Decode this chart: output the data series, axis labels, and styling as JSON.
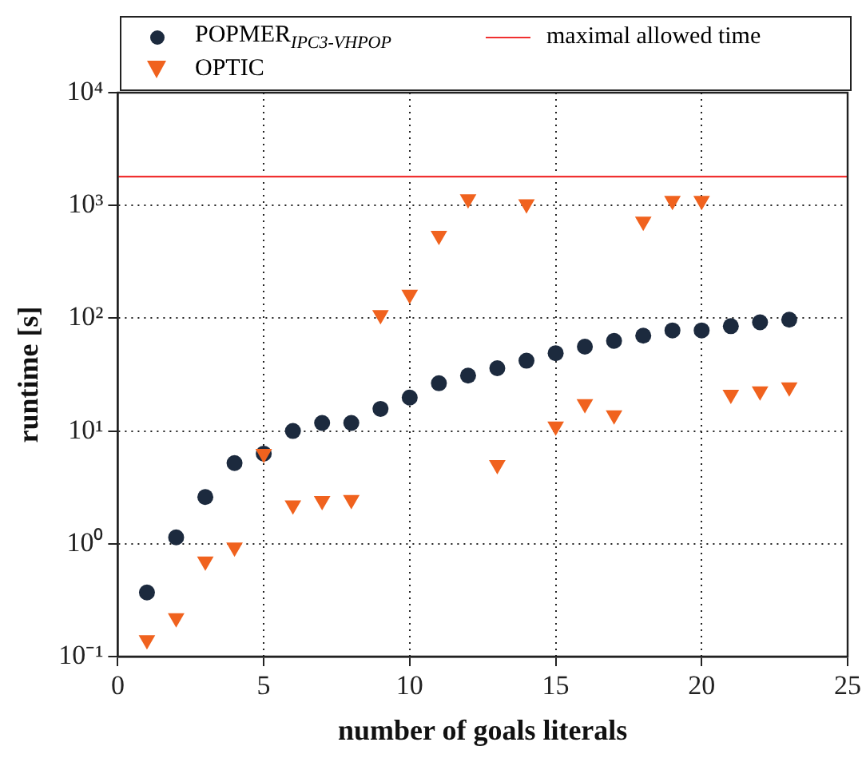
{
  "chart_data": {
    "type": "scatter",
    "xlabel": "number of goals literals",
    "ylabel": "runtime [s]",
    "log": "y",
    "xlim": [
      0,
      25
    ],
    "xticks": [
      0,
      5,
      10,
      15,
      20,
      25
    ],
    "ylim": [
      0.1,
      10000
    ],
    "yticks": [
      {
        "value": 0.1,
        "label": "10⁻¹"
      },
      {
        "value": 1,
        "label": "10⁰"
      },
      {
        "value": 10,
        "label": "10¹"
      },
      {
        "value": 100,
        "label": "10²"
      },
      {
        "value": 1000,
        "label": "10³"
      },
      {
        "value": 10000,
        "label": "10⁴"
      }
    ],
    "grid": true,
    "legend": "top",
    "x": [
      1,
      2,
      3,
      4,
      5,
      6,
      7,
      8,
      9,
      10,
      11,
      12,
      13,
      14,
      15,
      16,
      17,
      18,
      19,
      20,
      21,
      22,
      23
    ],
    "series": [
      {
        "name": "POPMER$_{IPC3-VHPOP}$",
        "color": "#1c2a3e",
        "marker": "circle",
        "values": [
          0.37,
          1.14,
          2.6,
          5.2,
          6.3,
          10,
          11.8,
          11.8,
          15.7,
          19.8,
          26.5,
          31,
          36,
          42,
          49,
          56,
          63,
          70,
          78,
          78,
          85,
          92,
          97
        ]
      },
      {
        "name": "OPTIC",
        "color": "#f0621e",
        "marker": "triangle",
        "values": [
          0.14,
          0.22,
          0.7,
          0.93,
          6.3,
          2.2,
          2.4,
          2.45,
          107,
          162,
          540,
          1140,
          5.0,
          1030,
          11,
          17.4,
          13.8,
          720,
          1100,
          1100,
          21,
          22.5,
          24.5
        ]
      }
    ],
    "ref_lines": [
      {
        "axis": "y",
        "value": 1800,
        "label": "maximal allowed time",
        "color": "#f03030",
        "line_style": "solid"
      }
    ]
  }
}
